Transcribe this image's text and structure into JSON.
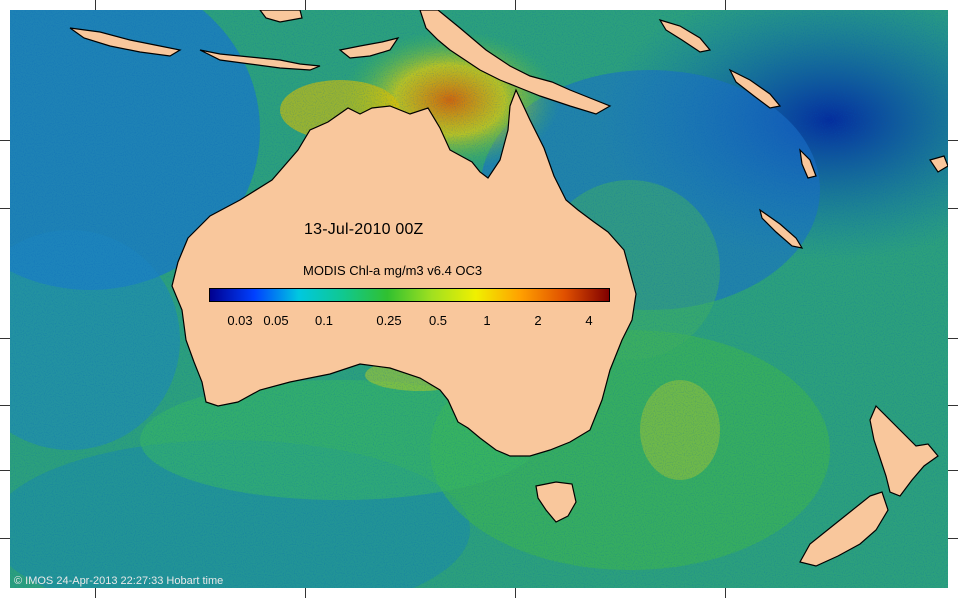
{
  "map": {
    "date_label": "13-Jul-2010 00Z",
    "scale_title": "MODIS Chl-a mg/m3 v6.4 OC3",
    "scale_tick_labels": [
      "0.03",
      "0.05",
      "0.1",
      "0.25",
      "0.5",
      "1",
      "2",
      "4"
    ],
    "colormap": [
      "#00008f",
      "#0040ff",
      "#00c8e0",
      "#10c890",
      "#30c030",
      "#a0e020",
      "#f0f000",
      "#ffa000",
      "#e05000",
      "#800000"
    ],
    "land_color": "#f9c79c",
    "credit": "© IMOS 24-Apr-2013 22:27:33 Hobart time"
  }
}
